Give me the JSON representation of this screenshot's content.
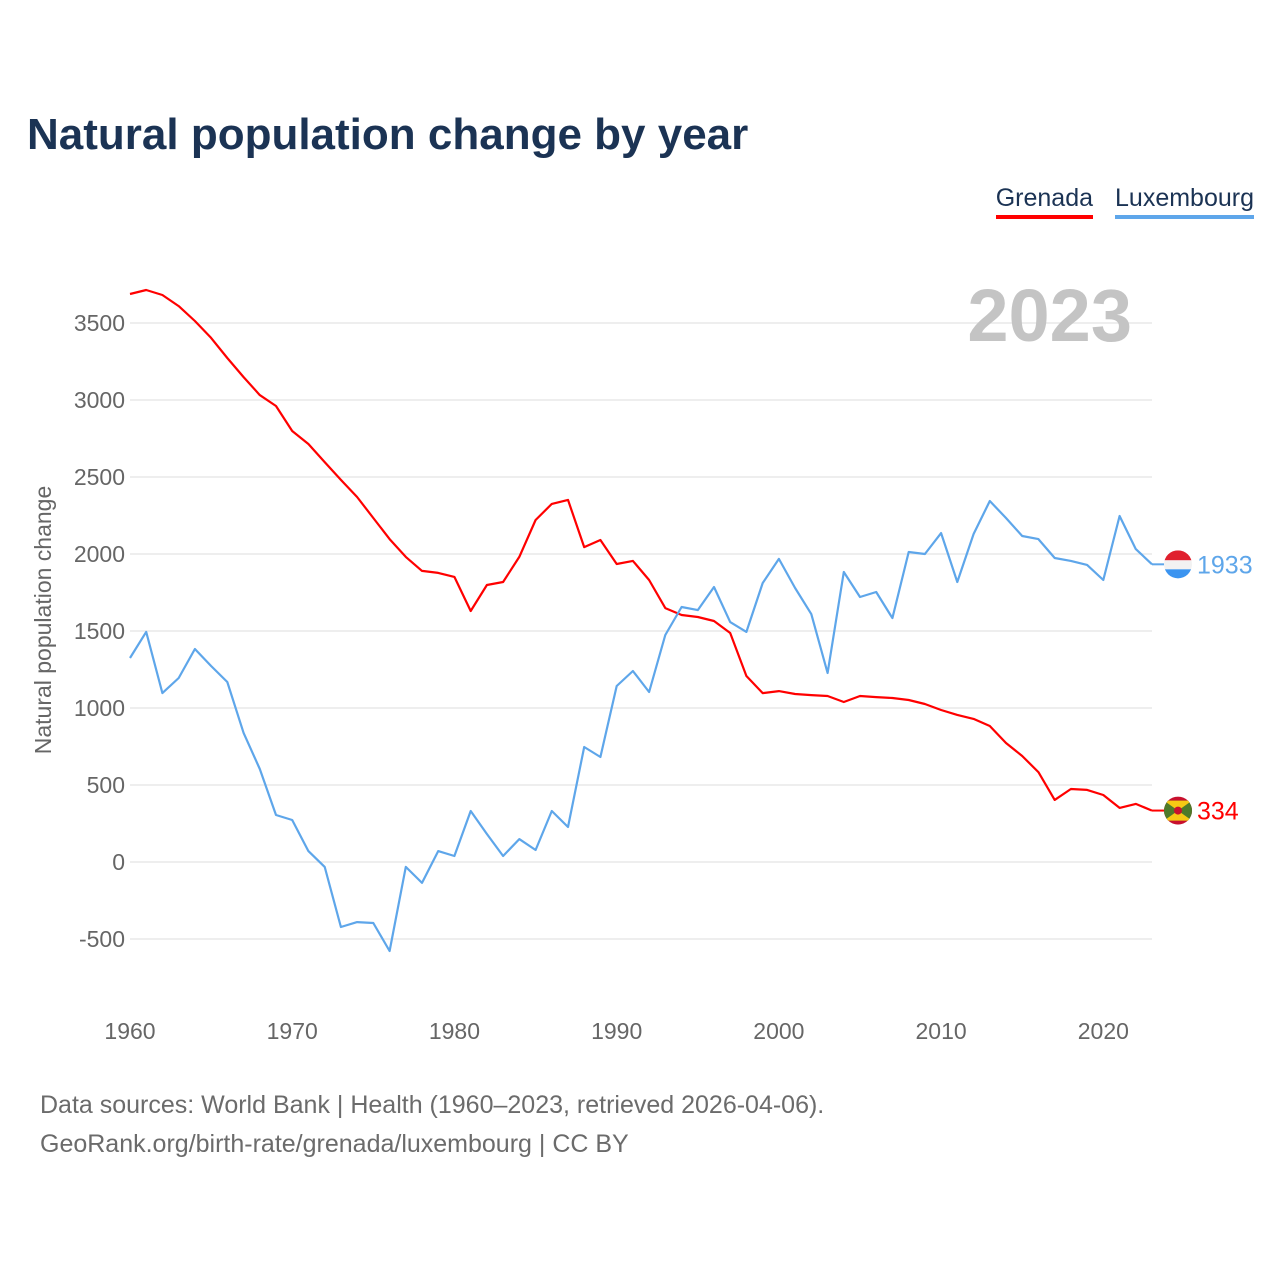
{
  "title": "Natural population change by year",
  "legend": [
    {
      "name": "Grenada",
      "color": "#ff0000"
    },
    {
      "name": "Luxembourg",
      "color": "#5ea6ea"
    }
  ],
  "year_watermark": "2023",
  "footer": {
    "line1": "Data sources: World Bank | Health (1960–2023, retrieved 2026-04-06).",
    "line2": "GeoRank.org/birth-rate/grenada/luxembourg | CC BY"
  },
  "chart_data": {
    "type": "line",
    "title": "Natural population change by year",
    "xlabel": "",
    "ylabel": "Natural population change",
    "xlim": [
      1960,
      2023
    ],
    "ylim": [
      -700,
      3900
    ],
    "x_ticks": [
      "1960",
      "1970",
      "1980",
      "1990",
      "2000",
      "2010",
      "2020"
    ],
    "y_ticks": [
      "-500",
      "0",
      "500",
      "1000",
      "1500",
      "2000",
      "2500",
      "3000",
      "3500"
    ],
    "grid": true,
    "legend_position": "top-right",
    "x": [
      1960,
      1961,
      1962,
      1963,
      1964,
      1965,
      1966,
      1967,
      1968,
      1969,
      1970,
      1971,
      1972,
      1973,
      1974,
      1975,
      1976,
      1977,
      1978,
      1979,
      1980,
      1981,
      1982,
      1983,
      1984,
      1985,
      1986,
      1987,
      1988,
      1989,
      1990,
      1991,
      1992,
      1993,
      1994,
      1995,
      1996,
      1997,
      1998,
      1999,
      2000,
      2001,
      2002,
      2003,
      2004,
      2005,
      2006,
      2007,
      2008,
      2009,
      2010,
      2011,
      2012,
      2013,
      2014,
      2015,
      2016,
      2017,
      2018,
      2019,
      2020,
      2021,
      2022,
      2023
    ],
    "series": [
      {
        "name": "Grenada",
        "color": "#ff0000",
        "end_label": "334",
        "values": [
          3688,
          3714,
          3682,
          3610,
          3513,
          3403,
          3273,
          3149,
          3032,
          2961,
          2799,
          2714,
          2597,
          2481,
          2370,
          2234,
          2097,
          1981,
          1890,
          1877,
          1851,
          1630,
          1799,
          1818,
          1981,
          2221,
          2325,
          2351,
          2045,
          2091,
          1935,
          1955,
          1831,
          1649,
          1604,
          1591,
          1565,
          1487,
          1208,
          1097,
          1110,
          1091,
          1084,
          1078,
          1039,
          1078,
          1071,
          1065,
          1052,
          1026,
          987,
          955,
          929,
          883,
          773,
          688,
          584,
          403,
          474,
          468,
          435,
          351,
          377,
          334
        ]
      },
      {
        "name": "Luxembourg",
        "color": "#5ea6ea",
        "end_label": "1933",
        "values": [
          1325,
          1494,
          1097,
          1195,
          1383,
          1273,
          1169,
          838,
          604,
          305,
          273,
          71,
          -32,
          -422,
          -390,
          -396,
          -578,
          -32,
          -136,
          71,
          39,
          331,
          182,
          39,
          149,
          78,
          331,
          227,
          747,
          682,
          1143,
          1240,
          1104,
          1474,
          1656,
          1636,
          1786,
          1558,
          1494,
          1812,
          1968,
          1779,
          1610,
          1227,
          1883,
          1721,
          1753,
          1584,
          2013,
          2000,
          2136,
          1818,
          2130,
          2344,
          2234,
          2117,
          2097,
          1974,
          1955,
          1929,
          1831,
          2247,
          2032,
          1933
        ]
      }
    ]
  }
}
